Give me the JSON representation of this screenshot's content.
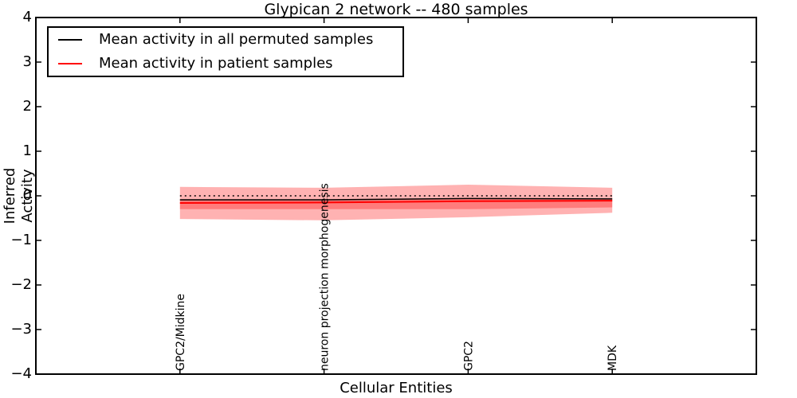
{
  "chart_data": {
    "type": "line",
    "title": "Glypican 2 network -- 480 samples",
    "xlabel": "Cellular Entities",
    "ylabel": "Inferred Activity",
    "xlim": [
      0,
      5
    ],
    "ylim": [
      -4,
      4
    ],
    "grid": false,
    "x": [
      1,
      2,
      3,
      4
    ],
    "categories": [
      "GPC2/Midkine",
      "neuron projection morphogenesis",
      "GPC2",
      "MDK"
    ],
    "yticks": [
      -4,
      -3,
      -2,
      -1,
      0,
      1,
      2,
      3,
      4
    ],
    "ytick_labels": [
      "−4",
      "−3",
      "−2",
      "−1",
      "0",
      "1",
      "2",
      "3",
      "4"
    ],
    "series": [
      {
        "name": "Mean activity in all permuted samples",
        "color": "#000000",
        "style": "solid",
        "width": 1.5,
        "values": [
          -0.09,
          -0.09,
          -0.06,
          -0.07
        ]
      },
      {
        "name": "Mean activity in patient samples",
        "color": "#ff0000",
        "style": "solid",
        "width": 2,
        "values": [
          -0.16,
          -0.15,
          -0.12,
          -0.11
        ]
      }
    ],
    "reference_line": {
      "y": 0,
      "color": "#000000",
      "style": "dotted",
      "width": 1.5
    },
    "bands": [
      {
        "name": "patient-activity-outer-band",
        "color": "#ff0000",
        "alpha": 0.3,
        "upper": [
          0.2,
          0.18,
          0.25,
          0.18
        ],
        "lower": [
          -0.52,
          -0.55,
          -0.48,
          -0.38
        ]
      },
      {
        "name": "patient-activity-inner-band",
        "color": "#ff0000",
        "alpha": 0.3,
        "upper": [
          -0.08,
          -0.09,
          -0.07,
          -0.07
        ],
        "lower": [
          -0.3,
          -0.3,
          -0.3,
          -0.26
        ]
      }
    ],
    "legend": {
      "position": "upper-left",
      "entries": [
        {
          "label": "Mean activity in all permuted samples",
          "color": "#000000"
        },
        {
          "label": "Mean activity in patient samples",
          "color": "#ff0000"
        }
      ]
    },
    "colors": {
      "axes": "#000000",
      "background": "#ffffff",
      "band_fill": "#ff0000"
    }
  }
}
